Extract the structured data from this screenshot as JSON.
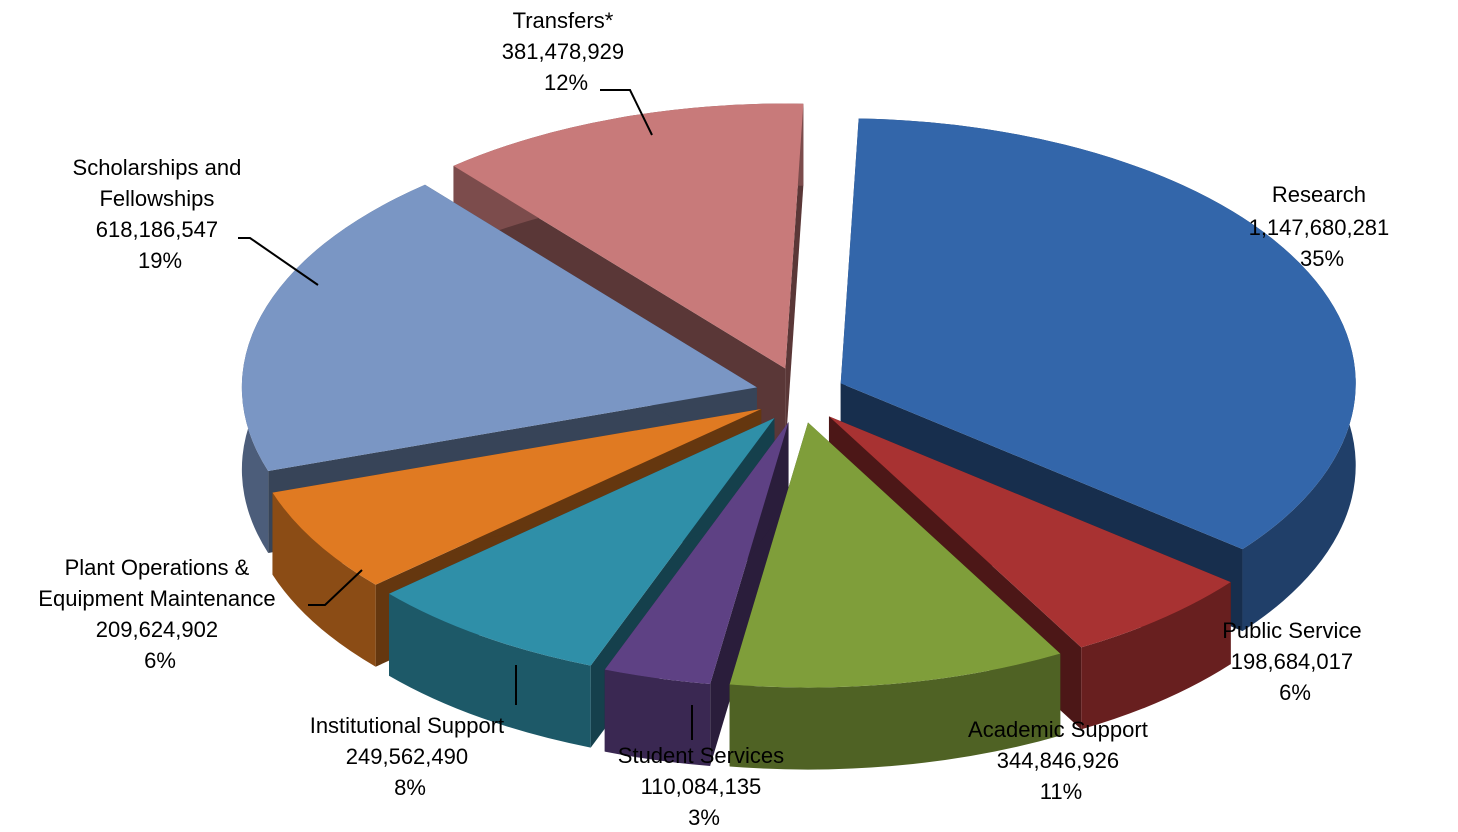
{
  "chart_data": {
    "type": "pie",
    "style": "3d-exploded",
    "legend": "none",
    "slices": [
      {
        "name": "Research",
        "value": 1147680281,
        "value_label": "1,147,680,281",
        "pct_label": "35%",
        "color": "#3366aa"
      },
      {
        "name": "Public Service",
        "value": 198684017,
        "value_label": "198,684,017",
        "pct_label": "6%",
        "color": "#a83232"
      },
      {
        "name": "Academic Support",
        "value": 344846926,
        "value_label": "344,846,926",
        "pct_label": "11%",
        "color": "#7f9e3a"
      },
      {
        "name": "Student Services",
        "value": 110084135,
        "value_label": "110,084,135",
        "pct_label": "3%",
        "color": "#5e4184"
      },
      {
        "name": "Institutional Support",
        "value": 249562490,
        "value_label": "249,562,490",
        "pct_label": "8%",
        "color": "#2f8fa8"
      },
      {
        "name": "Plant Operations & Equipment Maintenance",
        "value": 209624902,
        "value_label": "209,624,902",
        "pct_label": "6%",
        "color": "#e07a22"
      },
      {
        "name": "Scholarships and Fellowships",
        "value": 618186547,
        "value_label": "618,186,547",
        "pct_label": "19%",
        "color": "#7a96c4"
      },
      {
        "name": "Transfers*",
        "value": 381478929,
        "value_label": "381,478,929",
        "pct_label": "12%",
        "color": "#c87a7a"
      }
    ]
  }
}
